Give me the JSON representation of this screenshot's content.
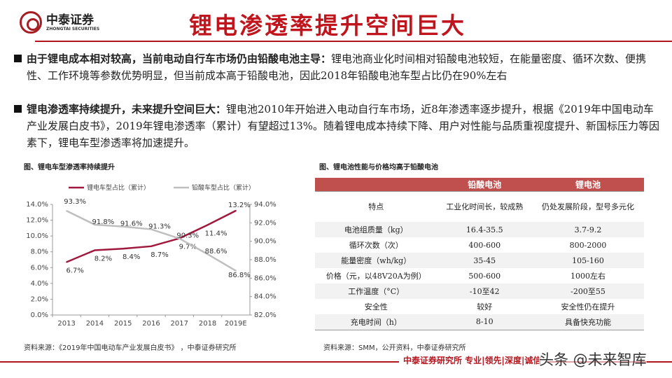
{
  "header": {
    "logo_cn": "中泰证券",
    "logo_en": "ZHONGTAI SECURITIES",
    "title": "锂电渗透率提升空间巨大"
  },
  "bullets": [
    {
      "bold": "由于锂电成本相对较高，当前电动自行车市场仍由铅酸电池主导：",
      "text": "锂电池商业化时间相对铅酸电池较短，在能量密度、循环次数、便携性、工作环境等参数优势明显，但当前成本高于铅酸电池，因此2018年铅酸电池车型占比仍在90%左右"
    },
    {
      "bold": "锂电渗透率持续提升，未来提升空间巨大：",
      "text": "锂电池2010年开始进入电动自行车市场，近8年渗透率逐步提升，根据《2019年中国电动车产业发展白皮书》，2019年锂电渗透率（累计）有望超过13%。随着锂电成本持续下降、用户对性能与品质重视度提升、新国标压力等因素下，锂电车型渗透率将加速提升。"
    }
  ],
  "chart_caption": "图、锂电车型渗透率持续提升",
  "table_caption": "图、锂电池性能与价格均高于铅酸电池",
  "chart_data": {
    "type": "line",
    "categories": [
      "2013",
      "2014",
      "2015",
      "2016",
      "2017",
      "2018",
      "2019E"
    ],
    "series": [
      {
        "name": "锂电车型占比（累计）",
        "axis": "left",
        "color": "#a0183e",
        "values": [
          6.7,
          8.2,
          8.4,
          8.7,
          9.7,
          11.4,
          13.2
        ],
        "labels": [
          "6.7%",
          "8.2%",
          "8.4%",
          "8.7%",
          "9.7%",
          "11.4%",
          "13.2%"
        ]
      },
      {
        "name": "铅酸车型占比（累计）",
        "axis": "right",
        "color": "#bfbfbf",
        "values": [
          93.3,
          91.8,
          91.6,
          91.3,
          90.3,
          88.6,
          86.8
        ],
        "labels": [
          "93.3%",
          "91.8%",
          "91.6%",
          "91.3%",
          "90.3%",
          "88.6%",
          "86.8%"
        ]
      }
    ],
    "left_ylim": [
      0,
      14
    ],
    "left_ticks": [
      "0.0%",
      "2.0%",
      "4.0%",
      "6.0%",
      "8.0%",
      "10.0%",
      "12.0%",
      "14.0%"
    ],
    "right_ylim": [
      82,
      94
    ],
    "right_ticks": [
      "82.0%",
      "84.0%",
      "86.0%",
      "88.0%",
      "90.0%",
      "92.0%",
      "94.0%"
    ],
    "legend": "top",
    "grid": false
  },
  "table": {
    "headers": [
      "",
      "铅酸电池",
      "锂电池"
    ],
    "rows": [
      [
        "特点",
        "工业化时间长，较成熟",
        "仍处发展阶段，型号多元化"
      ],
      [
        "电池组质量（kg）",
        "16.4-35.5",
        "3.7-9.2"
      ],
      [
        "循环次数（次）",
        "400-600",
        "800-2000"
      ],
      [
        "能量密度（wh/kg）",
        "35-45",
        "105-160"
      ],
      [
        "价格（元，以48V20A为例）",
        "500-600",
        "1000左右"
      ],
      [
        "工作温度（°C）",
        "-10至42",
        "-200至55"
      ],
      [
        "安全性",
        "较好",
        "安全性仍在提升"
      ],
      [
        "充电时间（h）",
        "8-10",
        "具备快充功能"
      ]
    ],
    "accent": "#c0504d"
  },
  "sources": {
    "left": "资料来源：《2019年中国电动车产业发展白皮书》 ，中泰证券研究所",
    "right": "资料来源：SMM，公开资料，中泰证券研究所"
  },
  "footer": "中泰证券研究所 专业|领先|深度|诚信",
  "watermark": "头条 @未来智库"
}
